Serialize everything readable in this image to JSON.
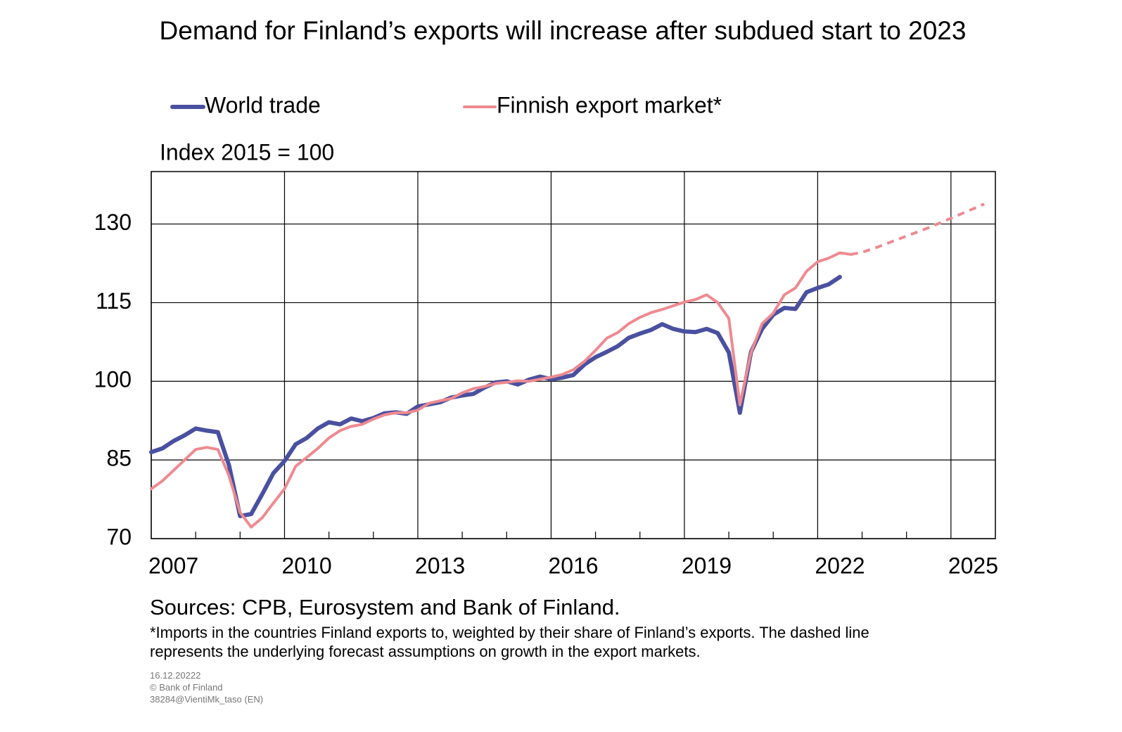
{
  "chart_data": {
    "type": "line",
    "title": "Demand for Finland’s exports will increase after subdued start to 2023",
    "y_label": "Index 2015 = 100",
    "x": [
      2007,
      2007.25,
      2007.5,
      2007.75,
      2008,
      2008.25,
      2008.5,
      2008.75,
      2009,
      2009.25,
      2009.5,
      2009.75,
      2010,
      2010.25,
      2010.5,
      2010.75,
      2011,
      2011.25,
      2011.5,
      2011.75,
      2012,
      2012.25,
      2012.5,
      2012.75,
      2013,
      2013.25,
      2013.5,
      2013.75,
      2014,
      2014.25,
      2014.5,
      2014.75,
      2015,
      2015.25,
      2015.5,
      2015.75,
      2016,
      2016.25,
      2016.5,
      2016.75,
      2017,
      2017.25,
      2017.5,
      2017.75,
      2018,
      2018.25,
      2018.5,
      2018.75,
      2019,
      2019.25,
      2019.5,
      2019.75,
      2020,
      2020.25,
      2020.5,
      2020.75,
      2021,
      2021.25,
      2021.5,
      2021.75,
      2022,
      2022.25,
      2022.5,
      2022.75,
      2023,
      2023.25,
      2023.5,
      2023.75,
      2024,
      2024.25,
      2024.5,
      2024.75,
      2025,
      2025.25,
      2025.5,
      2025.75
    ],
    "series": [
      {
        "name": "World trade",
        "color": "#4a50a0",
        "width": 6,
        "values": [
          86.5,
          87.2,
          88.6,
          89.7,
          91.0,
          90.6,
          90.3,
          84.0,
          74.3,
          74.7,
          78.5,
          82.5,
          84.8,
          88.0,
          89.2,
          91.0,
          92.2,
          91.8,
          92.9,
          92.4,
          93.0,
          93.9,
          94.1,
          93.8,
          95.2,
          95.6,
          96.0,
          96.9,
          97.3,
          97.6,
          98.8,
          99.8,
          100.0,
          99.4,
          100.3,
          100.9,
          100.4,
          100.7,
          101.2,
          103.2,
          104.6,
          105.6,
          106.7,
          108.3,
          109.1,
          109.8,
          110.9,
          110.0,
          109.5,
          109.4,
          110.0,
          109.2,
          105.5,
          94.0,
          105.6,
          110.0,
          112.7,
          114.0,
          113.8,
          117.0,
          117.8,
          118.5,
          119.9,
          null,
          null,
          null,
          null,
          null,
          null,
          null,
          null,
          null,
          null,
          null,
          null,
          null
        ]
      },
      {
        "name": "Finnish export market*",
        "color": "#ee8a90",
        "width": 4,
        "values": [
          79.5,
          81.0,
          83.0,
          85.0,
          87.0,
          87.4,
          87.0,
          82.0,
          75.0,
          72.2,
          74.0,
          76.8,
          79.5,
          83.8,
          85.5,
          87.2,
          89.2,
          90.6,
          91.4,
          91.8,
          92.8,
          93.6,
          94.0,
          94.0,
          94.5,
          95.8,
          96.3,
          96.7,
          97.8,
          98.6,
          99.0,
          99.6,
          99.8,
          100.1,
          100.0,
          100.4,
          100.8,
          101.3,
          102.2,
          103.8,
          105.9,
          108.2,
          109.3,
          111.0,
          112.2,
          113.1,
          113.7,
          114.4,
          115.1,
          115.6,
          116.5,
          115.0,
          112.0,
          95.5,
          105.5,
          111.0,
          113.0,
          116.5,
          117.8,
          121.0,
          122.8,
          123.5,
          124.5,
          124.2,
          null,
          null,
          null,
          null,
          null,
          null,
          null,
          null,
          null,
          null,
          null,
          null
        ]
      },
      {
        "color": "#ee8a90",
        "width": 4,
        "dashed": true,
        "values": [
          null,
          null,
          null,
          null,
          null,
          null,
          null,
          null,
          null,
          null,
          null,
          null,
          null,
          null,
          null,
          null,
          null,
          null,
          null,
          null,
          null,
          null,
          null,
          null,
          null,
          null,
          null,
          null,
          null,
          null,
          null,
          null,
          null,
          null,
          null,
          null,
          null,
          null,
          null,
          null,
          null,
          null,
          null,
          null,
          null,
          null,
          null,
          null,
          null,
          null,
          null,
          null,
          null,
          null,
          null,
          null,
          null,
          null,
          null,
          null,
          null,
          null,
          null,
          124.2,
          124.6,
          125.3,
          126.1,
          126.9,
          127.7,
          128.5,
          129.3,
          130.2,
          131.1,
          132.0,
          132.9,
          133.8
        ]
      }
    ],
    "xlim": [
      2007,
      2026
    ],
    "xticks": [
      2007,
      2010,
      2013,
      2016,
      2019,
      2022,
      2025
    ],
    "xminorticks": [
      2008,
      2009,
      2011,
      2012,
      2014,
      2015,
      2017,
      2018,
      2020,
      2021,
      2023,
      2024
    ],
    "ylim": [
      70,
      140
    ],
    "yticks": [
      70,
      85,
      100,
      115,
      130
    ],
    "grid": true,
    "sources": "Sources: CPB, Eurosystem and Bank of Finland.",
    "footnote": "*Imports in the countries Finland exports to, weighted by their share of Finland’s exports. The dashed line represents the underlying forecast assumptions on growth in the export markets.",
    "meta": [
      "16.12.20222",
      "© Bank of Finland",
      "38284@VientiMk_taso  (EN)"
    ]
  }
}
